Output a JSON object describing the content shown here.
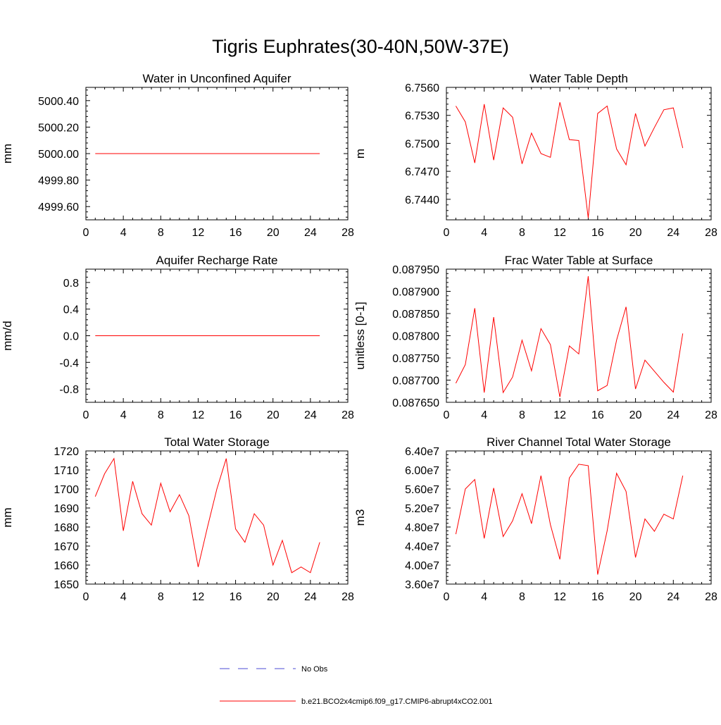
{
  "page_title": "Tigris Euphrates(30-40N,50W-37E)",
  "colors": {
    "model_line": "#ff0000",
    "obs_line": "#4b4bd6",
    "axis": "#000000"
  },
  "legend": {
    "obs_label": "No Obs",
    "model_label": "b.e21.BCO2x4cmip6.f09_g17.CMIP6-abrupt4xCO2.001"
  },
  "chart_data": [
    {
      "type": "line",
      "title": "Water in Unconfined Aquifer",
      "ylabel": "mm",
      "xlim": [
        0,
        28
      ],
      "xticks": [
        "0",
        "4",
        "8",
        "12",
        "16",
        "20",
        "24",
        "28"
      ],
      "ylim": [
        4999.5,
        5000.5
      ],
      "yticks": [
        {
          "v": 5000.4,
          "label": "5000.40"
        },
        {
          "v": 5000.2,
          "label": "5000.20"
        },
        {
          "v": 5000.0,
          "label": "5000.00"
        },
        {
          "v": 4999.8,
          "label": "4999.80"
        },
        {
          "v": 4999.6,
          "label": "4999.60"
        }
      ],
      "x": [
        1,
        2,
        3,
        4,
        5,
        6,
        7,
        8,
        9,
        10,
        11,
        12,
        13,
        14,
        15,
        16,
        17,
        18,
        19,
        20,
        21,
        22,
        23,
        24,
        25
      ],
      "series": [
        {
          "values": [
            5000,
            5000,
            5000,
            5000,
            5000,
            5000,
            5000,
            5000,
            5000,
            5000,
            5000,
            5000,
            5000,
            5000,
            5000,
            5000,
            5000,
            5000,
            5000,
            5000,
            5000,
            5000,
            5000,
            5000,
            5000
          ]
        }
      ]
    },
    {
      "type": "line",
      "title": "Water Table Depth",
      "ylabel": "m",
      "xlim": [
        0,
        28
      ],
      "xticks": [
        "0",
        "4",
        "8",
        "12",
        "16",
        "20",
        "24",
        "28"
      ],
      "ylim": [
        6.7418,
        6.756
      ],
      "yticks": [
        {
          "v": 6.756,
          "label": "6.7560"
        },
        {
          "v": 6.753,
          "label": "6.7530"
        },
        {
          "v": 6.75,
          "label": "6.7500"
        },
        {
          "v": 6.747,
          "label": "6.7470"
        },
        {
          "v": 6.744,
          "label": "6.7440"
        }
      ],
      "x": [
        1,
        2,
        3,
        4,
        5,
        6,
        7,
        8,
        9,
        10,
        11,
        12,
        13,
        14,
        15,
        16,
        17,
        18,
        19,
        20,
        21,
        22,
        23,
        24,
        25
      ],
      "series": [
        {
          "values": [
            6.754,
            6.7523,
            6.7479,
            6.7542,
            6.7482,
            6.7538,
            6.7528,
            6.7478,
            6.7511,
            6.7489,
            6.7485,
            6.7544,
            6.7504,
            6.7503,
            6.742,
            6.7532,
            6.754,
            6.7494,
            6.7477,
            6.7532,
            6.7497,
            6.7517,
            6.7536,
            6.7538,
            6.7495
          ]
        }
      ]
    },
    {
      "type": "line",
      "title": "Aquifer Recharge Rate",
      "ylabel": "mm/d",
      "xlim": [
        0,
        28
      ],
      "xticks": [
        "0",
        "4",
        "8",
        "12",
        "16",
        "20",
        "24",
        "28"
      ],
      "ylim": [
        -1,
        1
      ],
      "yticks": [
        {
          "v": 0.8,
          "label": "0.8"
        },
        {
          "v": 0.4,
          "label": "0.4"
        },
        {
          "v": 0.0,
          "label": "0.0"
        },
        {
          "v": -0.4,
          "label": "-0.4"
        },
        {
          "v": -0.8,
          "label": "-0.8"
        }
      ],
      "x": [
        1,
        2,
        3,
        4,
        5,
        6,
        7,
        8,
        9,
        10,
        11,
        12,
        13,
        14,
        15,
        16,
        17,
        18,
        19,
        20,
        21,
        22,
        23,
        24,
        25
      ],
      "series": [
        {
          "values": [
            0,
            0,
            0,
            0,
            0,
            0,
            0,
            0,
            0,
            0,
            0,
            0,
            0,
            0,
            0,
            0,
            0,
            0,
            0,
            0,
            0,
            0,
            0,
            0,
            0
          ]
        }
      ]
    },
    {
      "type": "line",
      "title": "Frac Water Table at Surface",
      "ylabel": "unitless [0-1]",
      "xlim": [
        0,
        28
      ],
      "xticks": [
        "0",
        "4",
        "8",
        "12",
        "16",
        "20",
        "24",
        "28"
      ],
      "ylim": [
        0.08765,
        0.08795
      ],
      "yticks": [
        {
          "v": 0.08795,
          "label": "0.087950"
        },
        {
          "v": 0.0879,
          "label": "0.087900"
        },
        {
          "v": 0.08785,
          "label": "0.087850"
        },
        {
          "v": 0.0878,
          "label": "0.087800"
        },
        {
          "v": 0.08775,
          "label": "0.087750"
        },
        {
          "v": 0.0877,
          "label": "0.087700"
        },
        {
          "v": 0.08765,
          "label": "0.087650"
        }
      ],
      "x": [
        1,
        2,
        3,
        4,
        5,
        6,
        7,
        8,
        9,
        10,
        11,
        12,
        13,
        14,
        15,
        16,
        17,
        18,
        19,
        20,
        21,
        22,
        23,
        24,
        25
      ],
      "series": [
        {
          "values": [
            0.087693,
            0.087735,
            0.087862,
            0.087672,
            0.087842,
            0.087672,
            0.087707,
            0.08779,
            0.087721,
            0.087816,
            0.08778,
            0.087662,
            0.087777,
            0.087759,
            0.087934,
            0.087676,
            0.087688,
            0.08779,
            0.087865,
            0.08768,
            0.087745,
            0.08772,
            0.087695,
            0.087673,
            0.087805
          ]
        }
      ]
    },
    {
      "type": "line",
      "title": "Total Water Storage",
      "ylabel": "mm",
      "xlim": [
        0,
        28
      ],
      "xticks": [
        "0",
        "4",
        "8",
        "12",
        "16",
        "20",
        "24",
        "28"
      ],
      "ylim": [
        1650,
        1720
      ],
      "yticks": [
        {
          "v": 1720,
          "label": "1720"
        },
        {
          "v": 1710,
          "label": "1710"
        },
        {
          "v": 1700,
          "label": "1700"
        },
        {
          "v": 1690,
          "label": "1690"
        },
        {
          "v": 1680,
          "label": "1680"
        },
        {
          "v": 1670,
          "label": "1670"
        },
        {
          "v": 1660,
          "label": "1660"
        },
        {
          "v": 1650,
          "label": "1650"
        }
      ],
      "x": [
        1,
        2,
        3,
        4,
        5,
        6,
        7,
        8,
        9,
        10,
        11,
        12,
        13,
        14,
        15,
        16,
        17,
        18,
        19,
        20,
        21,
        22,
        23,
        24,
        25
      ],
      "series": [
        {
          "values": [
            1696,
            1708,
            1716,
            1678,
            1704,
            1687,
            1681,
            1703,
            1688,
            1697,
            1686,
            1659,
            1680,
            1700,
            1716,
            1679,
            1672,
            1687,
            1681,
            1660,
            1673,
            1656,
            1659,
            1656,
            1672
          ]
        }
      ]
    },
    {
      "type": "line",
      "title": "River Channel Total Water Storage",
      "ylabel": "m3",
      "xlim": [
        0,
        28
      ],
      "xticks": [
        "0",
        "4",
        "8",
        "12",
        "16",
        "20",
        "24",
        "28"
      ],
      "ylim": [
        36000000,
        64000000
      ],
      "yticks": [
        {
          "v": 64000000,
          "label": "6.40e7"
        },
        {
          "v": 60000000,
          "label": "6.00e7"
        },
        {
          "v": 56000000,
          "label": "5.60e7"
        },
        {
          "v": 52000000,
          "label": "5.20e7"
        },
        {
          "v": 48000000,
          "label": "4.80e7"
        },
        {
          "v": 44000000,
          "label": "4.40e7"
        },
        {
          "v": 40000000,
          "label": "4.00e7"
        },
        {
          "v": 36000000,
          "label": "3.60e7"
        }
      ],
      "x": [
        1,
        2,
        3,
        4,
        5,
        6,
        7,
        8,
        9,
        10,
        11,
        12,
        13,
        14,
        15,
        16,
        17,
        18,
        19,
        20,
        21,
        22,
        23,
        24,
        25
      ],
      "series": [
        {
          "values": [
            46500000,
            56000000,
            58000000,
            45600000,
            56200000,
            46000000,
            49300000,
            55000000,
            48700000,
            58800000,
            48500000,
            41200000,
            58300000,
            61200000,
            60900000,
            38000000,
            47200000,
            59300000,
            55500000,
            41600000,
            49700000,
            47100000,
            50700000,
            49700000,
            58800000
          ]
        }
      ]
    }
  ]
}
